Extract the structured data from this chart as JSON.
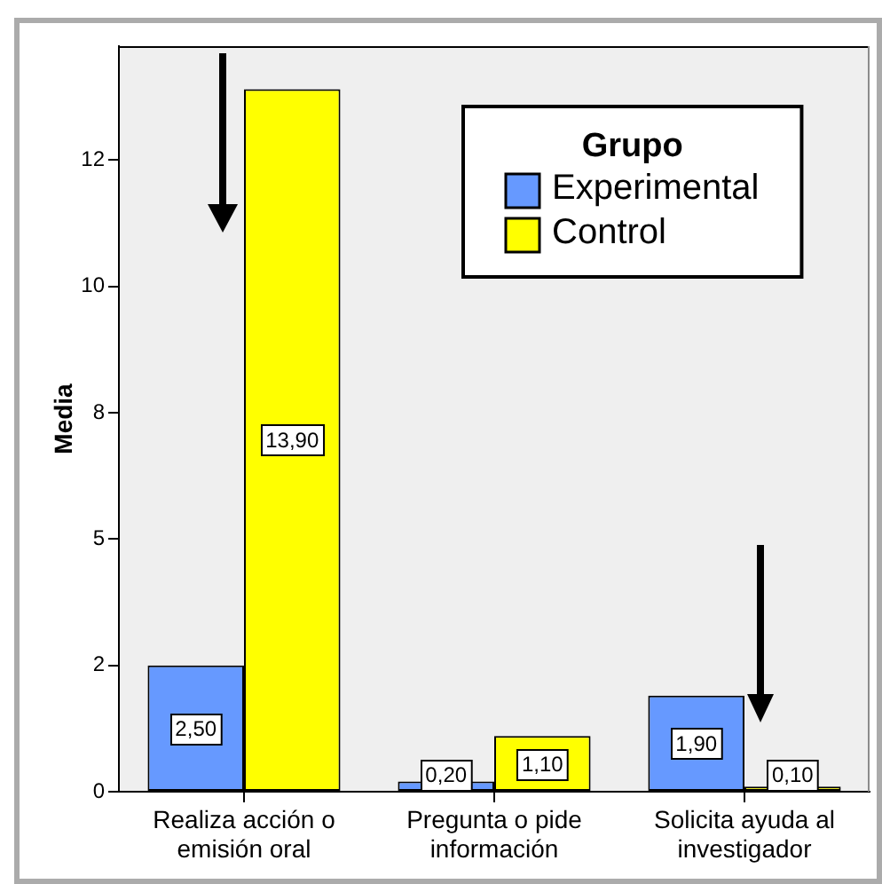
{
  "chart_data": {
    "type": "bar",
    "ylabel": "Media",
    "legend_title": "Grupo",
    "legend": "top right",
    "categories": [
      "Realiza acción o emisión oral",
      "Pregunta o pide información",
      "Solicita ayuda al investigador"
    ],
    "series": [
      {
        "name": "Experimental",
        "color": "#6699ff",
        "values": [
          2.5,
          0.2,
          1.9
        ],
        "value_labels": [
          "2,50",
          "0,20",
          "1,90"
        ]
      },
      {
        "name": "Control",
        "color": "#ffff00",
        "values": [
          13.9,
          1.1,
          0.1
        ],
        "value_labels": [
          "13,90",
          "1,10",
          "0,10"
        ]
      }
    ],
    "ylim": [
      0,
      14.75
    ],
    "yticks": [
      0,
      {
        "value": 2.5,
        "label": "2"
      },
      5,
      {
        "value": 7.5,
        "label": "8"
      },
      10,
      {
        "value": 12.5,
        "label": "12"
      }
    ]
  }
}
